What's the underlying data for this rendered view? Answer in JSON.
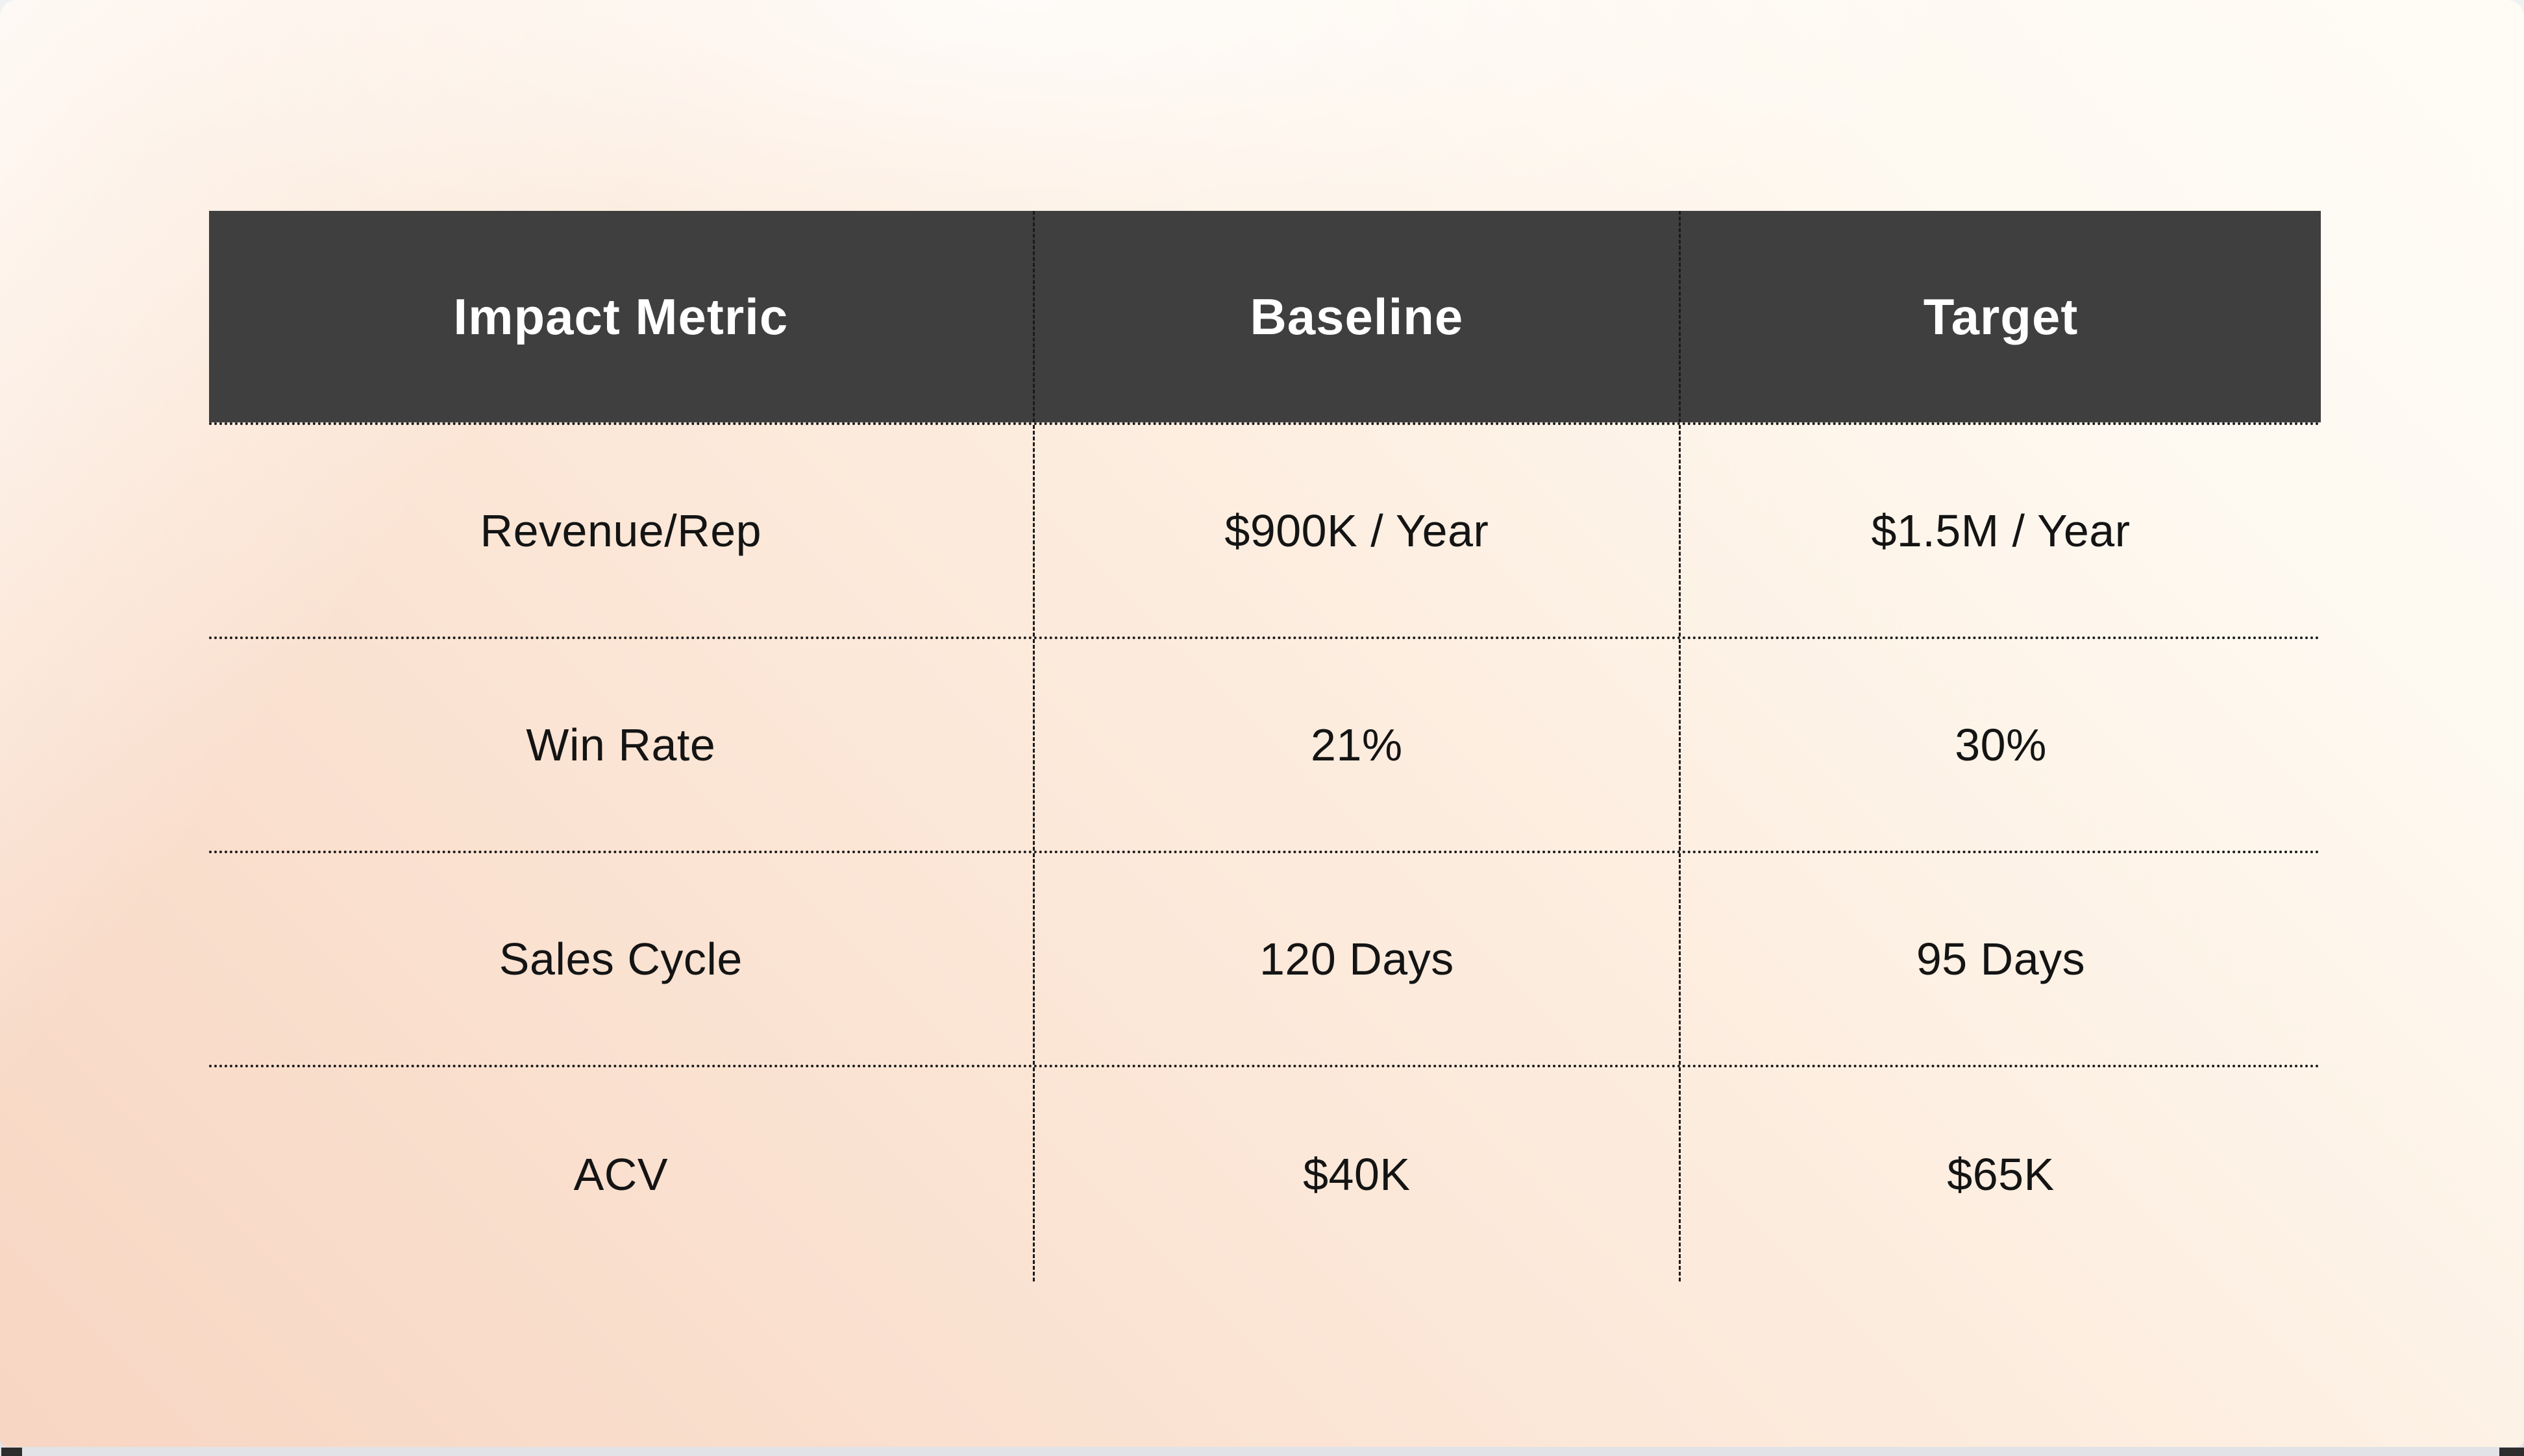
{
  "table": {
    "headers": [
      "Impact Metric",
      "Baseline",
      "Target"
    ],
    "rows": [
      {
        "metric": "Revenue/Rep",
        "baseline": "$900K / Year",
        "target": "$1.5M / Year"
      },
      {
        "metric": "Win Rate",
        "baseline": "21%",
        "target": "30%"
      },
      {
        "metric": "Sales Cycle",
        "baseline": "120 Days",
        "target": "95 Days"
      },
      {
        "metric": "ACV",
        "baseline": "$40K",
        "target": "$65K"
      }
    ]
  },
  "colors": {
    "header_background": "#3f3f3f",
    "header_text": "#ffffff",
    "body_text": "#141414",
    "divider": "#1a1a1a",
    "peach_gradient_start": "#f7d6c3",
    "peach_gradient_end": "#fffcf6",
    "bottom_bar": "#e2e3e7",
    "corner_notch": "#2d2d2d"
  }
}
